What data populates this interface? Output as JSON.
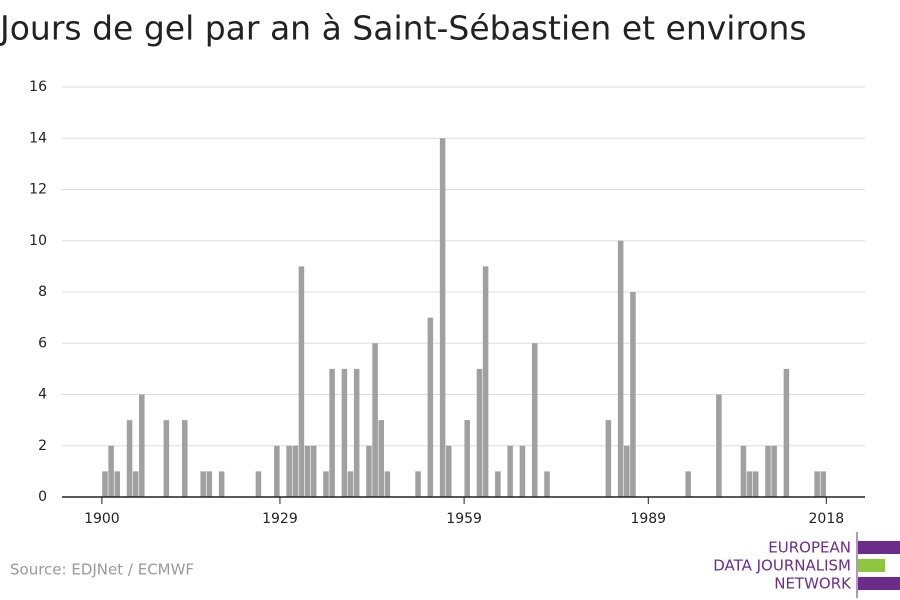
{
  "chart_data": {
    "type": "bar",
    "title": "Jours de gel par an à Saint-Sébastien et environs",
    "source": "Source: EDJNet / ECMWF",
    "logo": [
      "EUROPEAN",
      "DATA JOURNALISM",
      "NETWORK"
    ],
    "color": "#a0a0a0",
    "x": [
      1900,
      1901,
      1902,
      1903,
      1904,
      1905,
      1906,
      1907,
      1908,
      1909,
      1910,
      1911,
      1912,
      1913,
      1914,
      1915,
      1916,
      1917,
      1918,
      1919,
      1920,
      1921,
      1922,
      1923,
      1924,
      1925,
      1926,
      1927,
      1928,
      1929,
      1930,
      1931,
      1932,
      1933,
      1934,
      1935,
      1936,
      1937,
      1938,
      1939,
      1940,
      1941,
      1942,
      1943,
      1944,
      1945,
      1946,
      1947,
      1948,
      1949,
      1950,
      1951,
      1952,
      1953,
      1954,
      1955,
      1956,
      1957,
      1958,
      1959,
      1960,
      1961,
      1962,
      1963,
      1964,
      1965,
      1966,
      1967,
      1968,
      1969,
      1970,
      1971,
      1972,
      1973,
      1974,
      1975,
      1976,
      1977,
      1978,
      1979,
      1980,
      1981,
      1982,
      1983,
      1984,
      1985,
      1986,
      1987,
      1988,
      1989,
      1990,
      1991,
      1992,
      1993,
      1994,
      1995,
      1996,
      1997,
      1998,
      1999,
      2000,
      2001,
      2002,
      2003,
      2004,
      2005,
      2006,
      2007,
      2008,
      2009,
      2010,
      2011,
      2012,
      2013,
      2014,
      2015,
      2016,
      2017,
      2018,
      2019
    ],
    "values": [
      1,
      2,
      1,
      0,
      3,
      1,
      4,
      0,
      0,
      0,
      3,
      0,
      0,
      3,
      0,
      0,
      1,
      1,
      0,
      1,
      0,
      0,
      0,
      0,
      0,
      1,
      0,
      0,
      2,
      0,
      2,
      2,
      9,
      2,
      2,
      0,
      1,
      5,
      0,
      5,
      1,
      5,
      0,
      2,
      6,
      3,
      1,
      0,
      0,
      0,
      0,
      1,
      0,
      7,
      0,
      14,
      2,
      0,
      0,
      3,
      0,
      5,
      9,
      0,
      1,
      0,
      2,
      0,
      2,
      0,
      6,
      0,
      1,
      0,
      0,
      0,
      0,
      0,
      0,
      0,
      0,
      0,
      3,
      0,
      10,
      2,
      8,
      0,
      0,
      0,
      0,
      0,
      0,
      0,
      0,
      1,
      0,
      0,
      0,
      0,
      4,
      0,
      0,
      0,
      2,
      1,
      1,
      0,
      2,
      2,
      0,
      5,
      0,
      0,
      0,
      0,
      1,
      1,
      0,
      0
    ],
    "xlim": [
      1893.5,
      2024.3
    ],
    "xticks": [
      1900,
      1929,
      1959,
      1989,
      2018
    ],
    "ylim": [
      0,
      16
    ],
    "yticks": [
      0,
      2,
      4,
      6,
      8,
      10,
      12,
      14,
      16
    ],
    "grid": true
  }
}
